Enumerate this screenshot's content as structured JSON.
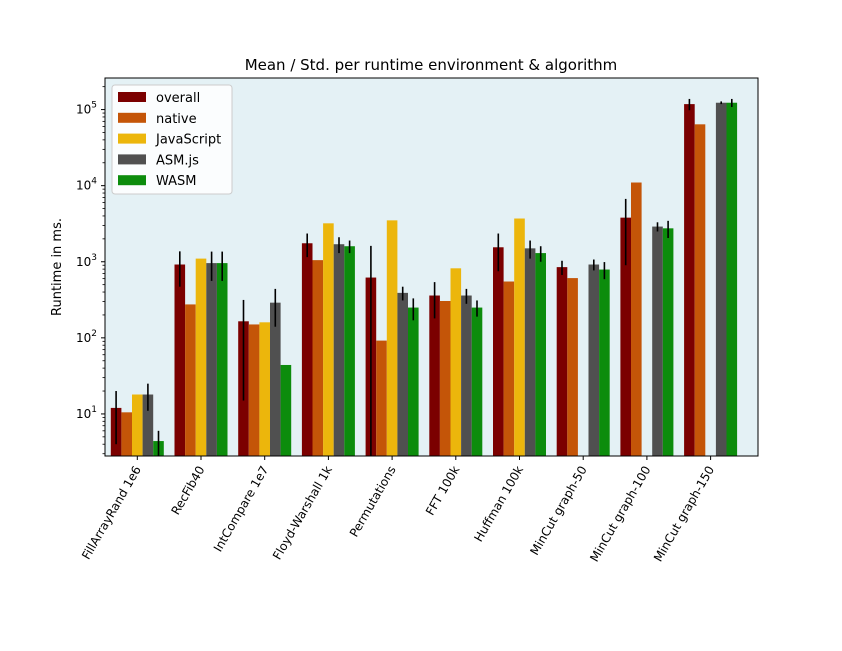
{
  "chart_data": {
    "type": "bar",
    "title": "Mean / Std. per runtime environment & algorithm",
    "xlabel": "",
    "ylabel": "Runtime in ms.",
    "yscale": "log",
    "ylim": [
      2.8,
      260000
    ],
    "background": "#e4f1f5",
    "grid": false,
    "legend_position": "top-left",
    "categories": [
      "FillArrayRand 1e6",
      "RecFib40",
      "IntCompare 1e7",
      "Floyd-Warshall 1k",
      "Permutations",
      "FFT 100k",
      "Huffman 100k",
      "MinCut graph-50",
      "MinCut graph-100",
      "MinCut graph-150"
    ],
    "y_ticks": [
      {
        "value": 10,
        "base": "10",
        "exp": "1"
      },
      {
        "value": 100,
        "base": "10",
        "exp": "2"
      },
      {
        "value": 1000,
        "base": "10",
        "exp": "3"
      },
      {
        "value": 10000,
        "base": "10",
        "exp": "4"
      },
      {
        "value": 100000,
        "base": "10",
        "exp": "5"
      }
    ],
    "series": [
      {
        "name": "overall",
        "color": "#7b0000",
        "values": [
          12,
          920,
          165,
          1750,
          620,
          360,
          1550,
          850,
          3800,
          118000
        ],
        "errors": [
          8,
          450,
          150,
          600,
          1000,
          180,
          800,
          180,
          2900,
          20000
        ]
      },
      {
        "name": "native",
        "color": "#c45508",
        "values": [
          10.5,
          275,
          150,
          1050,
          92,
          305,
          550,
          610,
          11000,
          64000
        ],
        "errors": [
          null,
          null,
          null,
          null,
          null,
          null,
          null,
          null,
          null,
          null
        ]
      },
      {
        "name": "JavaScript",
        "color": "#ecb60c",
        "values": [
          18,
          1100,
          160,
          3200,
          3500,
          820,
          3700,
          null,
          null,
          null
        ],
        "errors": [
          null,
          null,
          null,
          null,
          null,
          null,
          null,
          null,
          null,
          null
        ]
      },
      {
        "name": "ASM.js",
        "color": "#505050",
        "values": [
          18,
          960,
          290,
          1700,
          390,
          360,
          1500,
          920,
          2900,
          123000
        ],
        "errors": [
          7,
          400,
          150,
          400,
          80,
          80,
          400,
          150,
          400,
          5000
        ]
      },
      {
        "name": "WASM",
        "color": "#0c8c0c",
        "values": [
          4.4,
          960,
          44,
          1600,
          250,
          250,
          1300,
          790,
          2750,
          123000
        ],
        "errors": [
          1.6,
          400,
          null,
          300,
          80,
          60,
          300,
          200,
          700,
          15000
        ]
      }
    ]
  }
}
